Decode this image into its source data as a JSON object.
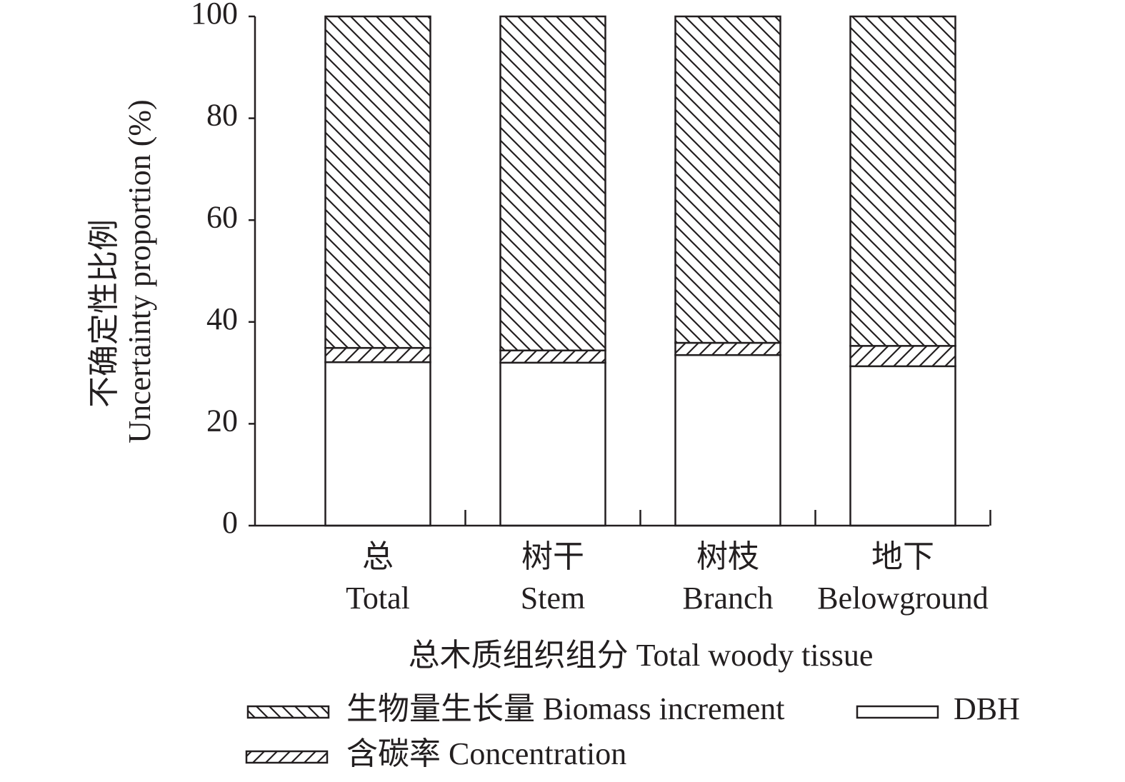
{
  "chart_data": {
    "type": "stacked-bar",
    "categories": [
      [
        "总",
        "Total"
      ],
      [
        "树干",
        "Stem"
      ],
      [
        "树枝",
        "Branch"
      ],
      [
        "地下",
        "Belowground"
      ]
    ],
    "ylabel": [
      "不确定性比例",
      "Uncertainty proportion (%)"
    ],
    "xlabel": "总木质组织组分 Total woody tissue",
    "series": [
      {
        "name": "DBH",
        "color": "#ffffff",
        "hatch": "none",
        "values": [
          32.1,
          32.0,
          33.5,
          31.3
        ]
      },
      {
        "name": "含碳率 Concentration",
        "color": "#ffffff",
        "hatch": "forward",
        "values": [
          2.8,
          2.4,
          2.4,
          4.0
        ]
      },
      {
        "name": "生物量生长量 Biomass increment",
        "color": "#ffffff",
        "hatch": "back",
        "values": [
          65.1,
          65.6,
          64.1,
          64.7
        ]
      }
    ],
    "ylim": [
      0,
      100
    ],
    "yticks": [
      0,
      20,
      40,
      60,
      80,
      100
    ],
    "grid": false
  }
}
